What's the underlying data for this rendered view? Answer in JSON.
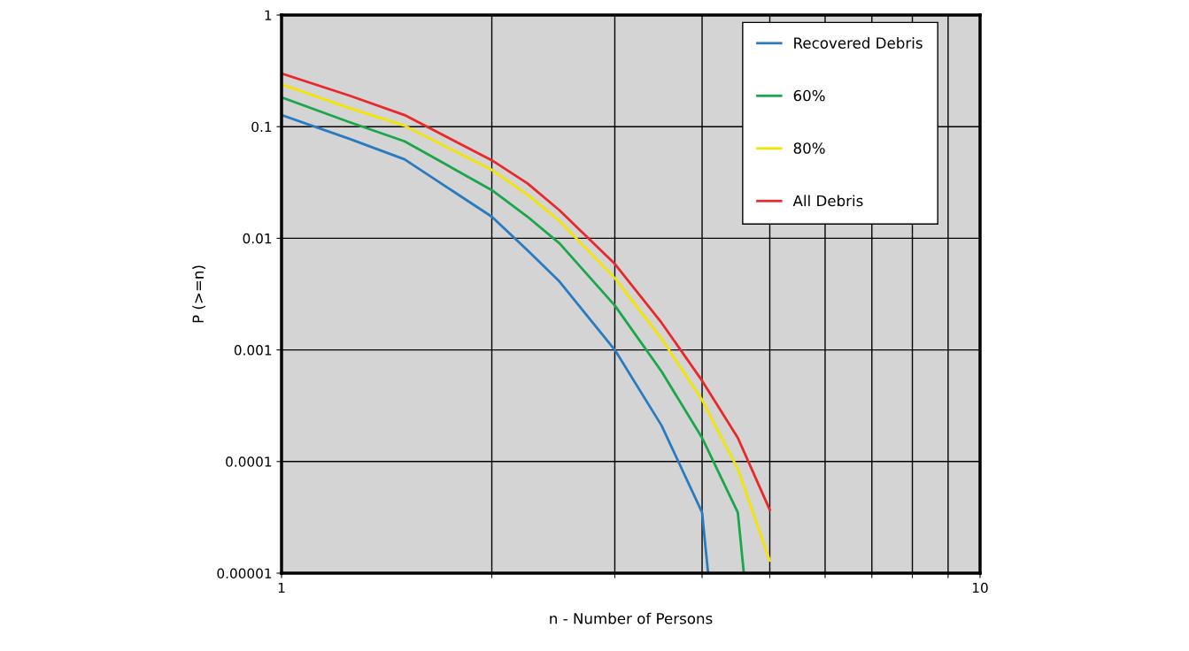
{
  "chart_data": {
    "type": "line",
    "xlabel": "n - Number of Persons",
    "ylabel": "P (>=n)",
    "log": "xy",
    "xlim": [
      1,
      10
    ],
    "ylim": [
      1e-05,
      1
    ],
    "xticks": [
      1,
      {
        "value": 2,
        "label": null
      },
      {
        "value": 3,
        "label": null
      },
      {
        "value": 4,
        "label": null
      },
      {
        "value": 5,
        "label": null
      },
      {
        "value": 6,
        "label": null
      },
      {
        "value": 7,
        "label": null
      },
      {
        "value": 8,
        "label": null
      },
      {
        "value": 9,
        "label": null
      },
      10
    ],
    "yticks": [
      {
        "value": 1e-05,
        "label": "0.00001"
      },
      {
        "value": 0.0001,
        "label": "0.0001"
      },
      {
        "value": 0.001,
        "label": "0.001"
      },
      {
        "value": 0.01,
        "label": "0.01"
      },
      {
        "value": 0.1,
        "label": "0.1"
      },
      1
    ],
    "grid": true,
    "legend": "top right",
    "line_style": "solid",
    "marker": "none",
    "series": [
      {
        "name": "Recovered Debris",
        "color": "#2a7abf",
        "x": [
          1,
          1.25,
          1.5,
          2,
          2.25,
          2.5,
          3,
          3.5,
          4,
          4.08
        ],
        "values": [
          0.127,
          0.078,
          0.051,
          0.0156,
          0.0078,
          0.0041,
          0.001,
          0.00021,
          3.5e-05,
          1e-05
        ]
      },
      {
        "name": "60%",
        "color": "#1aa64a",
        "x": [
          1,
          1.25,
          1.5,
          2,
          2.25,
          2.5,
          3,
          3.5,
          4,
          4.5,
          4.59
        ],
        "values": [
          0.183,
          0.11,
          0.074,
          0.027,
          0.0156,
          0.009,
          0.0025,
          0.00064,
          0.000163,
          3.5e-05,
          1e-05
        ]
      },
      {
        "name": "80%",
        "color": "#f2e600",
        "x": [
          1,
          1.25,
          1.5,
          2,
          2.25,
          2.5,
          3,
          3.5,
          4,
          4.5,
          5
        ],
        "values": [
          0.24,
          0.147,
          0.102,
          0.041,
          0.0246,
          0.0143,
          0.0044,
          0.00126,
          0.000357,
          8.6e-05,
          1.3e-05
        ]
      },
      {
        "name": "All Debris",
        "color": "#e8282b",
        "x": [
          1,
          1.25,
          1.5,
          2,
          2.25,
          2.5,
          3,
          3.5,
          4,
          4.5,
          5
        ],
        "values": [
          0.3,
          0.19,
          0.127,
          0.05,
          0.031,
          0.0178,
          0.0059,
          0.00175,
          0.00053,
          0.000163,
          3.7e-05
        ]
      }
    ]
  }
}
